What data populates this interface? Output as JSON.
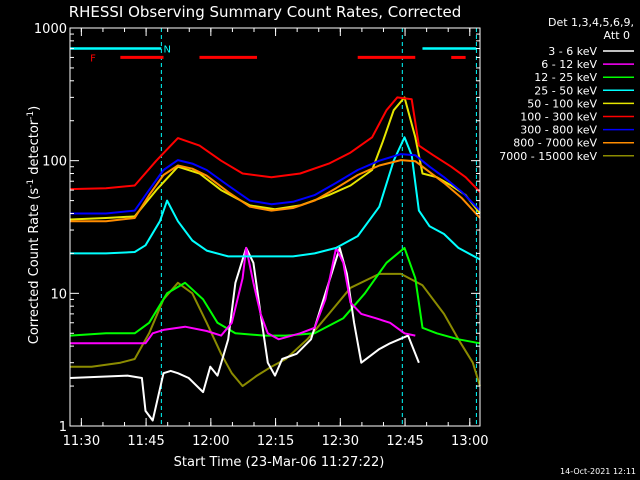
{
  "chart_data": {
    "type": "line",
    "title": "RHESSI Observing Summary Count Rates, Corrected",
    "xlabel": "Start Time (23-Mar-06 11:27:22)",
    "ylabel_main": "Corrected Count Rate (s",
    "ylabel_sup1": "-1",
    "ylabel_mid": " detector",
    "ylabel_sup2": "-1",
    "ylabel_end": ")",
    "y_scale": "log",
    "xlim": [
      0,
      5700
    ],
    "ylim": [
      1,
      1000
    ],
    "x_ticks": [
      {
        "t": 158,
        "label": "11:30"
      },
      {
        "t": 1058,
        "label": "11:45"
      },
      {
        "t": 1958,
        "label": "12:00"
      },
      {
        "t": 2858,
        "label": "12:15"
      },
      {
        "t": 3758,
        "label": "12:30"
      },
      {
        "t": 4658,
        "label": "12:45"
      },
      {
        "t": 5558,
        "label": "13:00"
      }
    ],
    "y_ticks": [
      {
        "v": 1,
        "label": "1"
      },
      {
        "v": 10,
        "label": "10"
      },
      {
        "v": 100,
        "label": "100"
      },
      {
        "v": 1000,
        "label": "1000"
      }
    ],
    "legend_header": [
      "Det 1,3,4,5,6,9,",
      "Att 0"
    ],
    "legend_position": "right",
    "series": [
      {
        "name": "3 - 6 keV",
        "color": "#ffffff",
        "points": [
          [
            0,
            2.3
          ],
          [
            800,
            2.4
          ],
          [
            1000,
            2.3
          ],
          [
            1050,
            1.3
          ],
          [
            1150,
            1.1
          ],
          [
            1300,
            2.5
          ],
          [
            1400,
            2.6
          ],
          [
            1500,
            2.5
          ],
          [
            1650,
            2.3
          ],
          [
            1850,
            1.8
          ],
          [
            1950,
            2.8
          ],
          [
            2050,
            2.4
          ],
          [
            2200,
            4.5
          ],
          [
            2300,
            12
          ],
          [
            2450,
            22
          ],
          [
            2550,
            17
          ],
          [
            2650,
            7
          ],
          [
            2750,
            3
          ],
          [
            2850,
            2.4
          ],
          [
            2950,
            3.2
          ],
          [
            3150,
            3.5
          ],
          [
            3350,
            4.5
          ],
          [
            3550,
            10
          ],
          [
            3750,
            22
          ],
          [
            3850,
            14
          ],
          [
            3950,
            6
          ],
          [
            4050,
            3
          ],
          [
            4300,
            3.8
          ],
          [
            4450,
            4.2
          ],
          [
            4700,
            4.8
          ],
          [
            4850,
            3
          ]
        ]
      },
      {
        "name": "6 - 12 keV",
        "color": "#ff00ff",
        "points": [
          [
            0,
            4.2
          ],
          [
            1050,
            4.2
          ],
          [
            1150,
            5
          ],
          [
            1300,
            5.3
          ],
          [
            1600,
            5.6
          ],
          [
            1900,
            5.2
          ],
          [
            2100,
            4.8
          ],
          [
            2250,
            6
          ],
          [
            2400,
            13
          ],
          [
            2450,
            22
          ],
          [
            2550,
            12
          ],
          [
            2650,
            7
          ],
          [
            2750,
            5
          ],
          [
            2900,
            4.5
          ],
          [
            3200,
            5
          ],
          [
            3400,
            5.5
          ],
          [
            3550,
            9
          ],
          [
            3700,
            22
          ],
          [
            3800,
            17
          ],
          [
            3900,
            8.5
          ],
          [
            4050,
            7
          ],
          [
            4250,
            6.5
          ],
          [
            4450,
            6
          ],
          [
            4650,
            5
          ],
          [
            4800,
            4.8
          ]
        ]
      },
      {
        "name": "12 - 25 keV",
        "color": "#00ff00",
        "points": [
          [
            0,
            4.8
          ],
          [
            500,
            5
          ],
          [
            900,
            5
          ],
          [
            1100,
            6
          ],
          [
            1350,
            10
          ],
          [
            1600,
            12
          ],
          [
            1850,
            9
          ],
          [
            2050,
            6
          ],
          [
            2300,
            5
          ],
          [
            2700,
            4.8
          ],
          [
            3000,
            4.8
          ],
          [
            3400,
            5
          ],
          [
            3800,
            6.5
          ],
          [
            4100,
            10
          ],
          [
            4400,
            17
          ],
          [
            4650,
            22
          ],
          [
            4800,
            13
          ],
          [
            4900,
            5.5
          ],
          [
            5100,
            5
          ],
          [
            5400,
            4.5
          ],
          [
            5700,
            4.2
          ]
        ]
      },
      {
        "name": "25 - 50 keV",
        "color": "#00ffff",
        "points": [
          [
            0,
            20
          ],
          [
            500,
            20
          ],
          [
            900,
            20.5
          ],
          [
            1050,
            23
          ],
          [
            1250,
            35
          ],
          [
            1350,
            50
          ],
          [
            1500,
            35
          ],
          [
            1700,
            25
          ],
          [
            1900,
            21
          ],
          [
            2200,
            19
          ],
          [
            2500,
            19
          ],
          [
            2800,
            19
          ],
          [
            3100,
            19
          ],
          [
            3400,
            20
          ],
          [
            3700,
            22
          ],
          [
            4000,
            27
          ],
          [
            4300,
            45
          ],
          [
            4500,
            100
          ],
          [
            4650,
            150
          ],
          [
            4750,
            110
          ],
          [
            4850,
            42
          ],
          [
            5000,
            32
          ],
          [
            5200,
            28
          ],
          [
            5400,
            22
          ],
          [
            5700,
            18
          ]
        ]
      },
      {
        "name": "50 - 100 keV",
        "color": "#e6e600",
        "points": [
          [
            0,
            36
          ],
          [
            500,
            37
          ],
          [
            900,
            38
          ],
          [
            1200,
            60
          ],
          [
            1500,
            90
          ],
          [
            1800,
            80
          ],
          [
            2100,
            60
          ],
          [
            2500,
            46
          ],
          [
            2850,
            43
          ],
          [
            3200,
            46
          ],
          [
            3600,
            55
          ],
          [
            3900,
            65
          ],
          [
            4200,
            85
          ],
          [
            4350,
            140
          ],
          [
            4500,
            240
          ],
          [
            4650,
            300
          ],
          [
            4800,
            150
          ],
          [
            4900,
            80
          ],
          [
            5100,
            75
          ],
          [
            5300,
            65
          ],
          [
            5500,
            55
          ],
          [
            5700,
            40
          ]
        ]
      },
      {
        "name": "100 - 300 keV",
        "color": "#ff0000",
        "points": [
          [
            0,
            61
          ],
          [
            500,
            62
          ],
          [
            900,
            65
          ],
          [
            1200,
            100
          ],
          [
            1500,
            148
          ],
          [
            1800,
            130
          ],
          [
            2100,
            100
          ],
          [
            2400,
            80
          ],
          [
            2800,
            75
          ],
          [
            3200,
            80
          ],
          [
            3600,
            95
          ],
          [
            3900,
            115
          ],
          [
            4200,
            150
          ],
          [
            4400,
            240
          ],
          [
            4550,
            300
          ],
          [
            4750,
            290
          ],
          [
            4850,
            130
          ],
          [
            5050,
            110
          ],
          [
            5300,
            90
          ],
          [
            5500,
            75
          ],
          [
            5700,
            58
          ]
        ]
      },
      {
        "name": "300 - 800 keV",
        "color": "#0000ff",
        "points": [
          [
            0,
            40
          ],
          [
            500,
            40
          ],
          [
            900,
            42
          ],
          [
            1100,
            60
          ],
          [
            1300,
            85
          ],
          [
            1500,
            101
          ],
          [
            1700,
            95
          ],
          [
            1900,
            85
          ],
          [
            2200,
            65
          ],
          [
            2500,
            50
          ],
          [
            2800,
            47
          ],
          [
            3100,
            49
          ],
          [
            3400,
            55
          ],
          [
            3700,
            68
          ],
          [
            4000,
            85
          ],
          [
            4300,
            100
          ],
          [
            4600,
            112
          ],
          [
            4800,
            110
          ],
          [
            5000,
            90
          ],
          [
            5200,
            75
          ],
          [
            5450,
            58
          ],
          [
            5700,
            42
          ]
        ]
      },
      {
        "name": "800 - 7000 keV",
        "color": "#ff8c00",
        "points": [
          [
            0,
            35
          ],
          [
            500,
            35
          ],
          [
            900,
            37
          ],
          [
            1100,
            55
          ],
          [
            1300,
            78
          ],
          [
            1500,
            92
          ],
          [
            1700,
            87
          ],
          [
            1900,
            77
          ],
          [
            2200,
            58
          ],
          [
            2500,
            45
          ],
          [
            2800,
            42
          ],
          [
            3100,
            44
          ],
          [
            3400,
            50
          ],
          [
            3700,
            62
          ],
          [
            4000,
            78
          ],
          [
            4300,
            92
          ],
          [
            4600,
            101
          ],
          [
            4800,
            99
          ],
          [
            5000,
            82
          ],
          [
            5200,
            68
          ],
          [
            5450,
            52
          ],
          [
            5700,
            37
          ]
        ]
      },
      {
        "name": "7000 - 15000 keV",
        "color": "#8b8b00",
        "points": [
          [
            0,
            2.8
          ],
          [
            300,
            2.8
          ],
          [
            700,
            3
          ],
          [
            900,
            3.2
          ],
          [
            1100,
            5
          ],
          [
            1300,
            9
          ],
          [
            1500,
            12
          ],
          [
            1700,
            10
          ],
          [
            1900,
            6
          ],
          [
            2100,
            3.5
          ],
          [
            2250,
            2.5
          ],
          [
            2400,
            2
          ],
          [
            2600,
            2.4
          ],
          [
            2800,
            2.8
          ],
          [
            3000,
            3.2
          ],
          [
            3300,
            4.5
          ],
          [
            3600,
            7
          ],
          [
            3900,
            11
          ],
          [
            4300,
            14
          ],
          [
            4600,
            14
          ],
          [
            4900,
            11.5
          ],
          [
            5200,
            7
          ],
          [
            5400,
            4.5
          ],
          [
            5600,
            3
          ],
          [
            5700,
            2
          ]
        ]
      }
    ],
    "flare_label": "F",
    "flare_segments": [
      [
        700,
        1300
      ],
      [
        1800,
        2600
      ],
      [
        4000,
        4800
      ],
      [
        5300,
        5500
      ]
    ],
    "night_label": "N",
    "night_segments": [
      [
        -200,
        1270
      ],
      [
        4900,
        5650
      ]
    ],
    "night_dashes": [
      1270,
      4620,
      5650
    ]
  },
  "footer_date": "14-Oct-2021 12:11"
}
